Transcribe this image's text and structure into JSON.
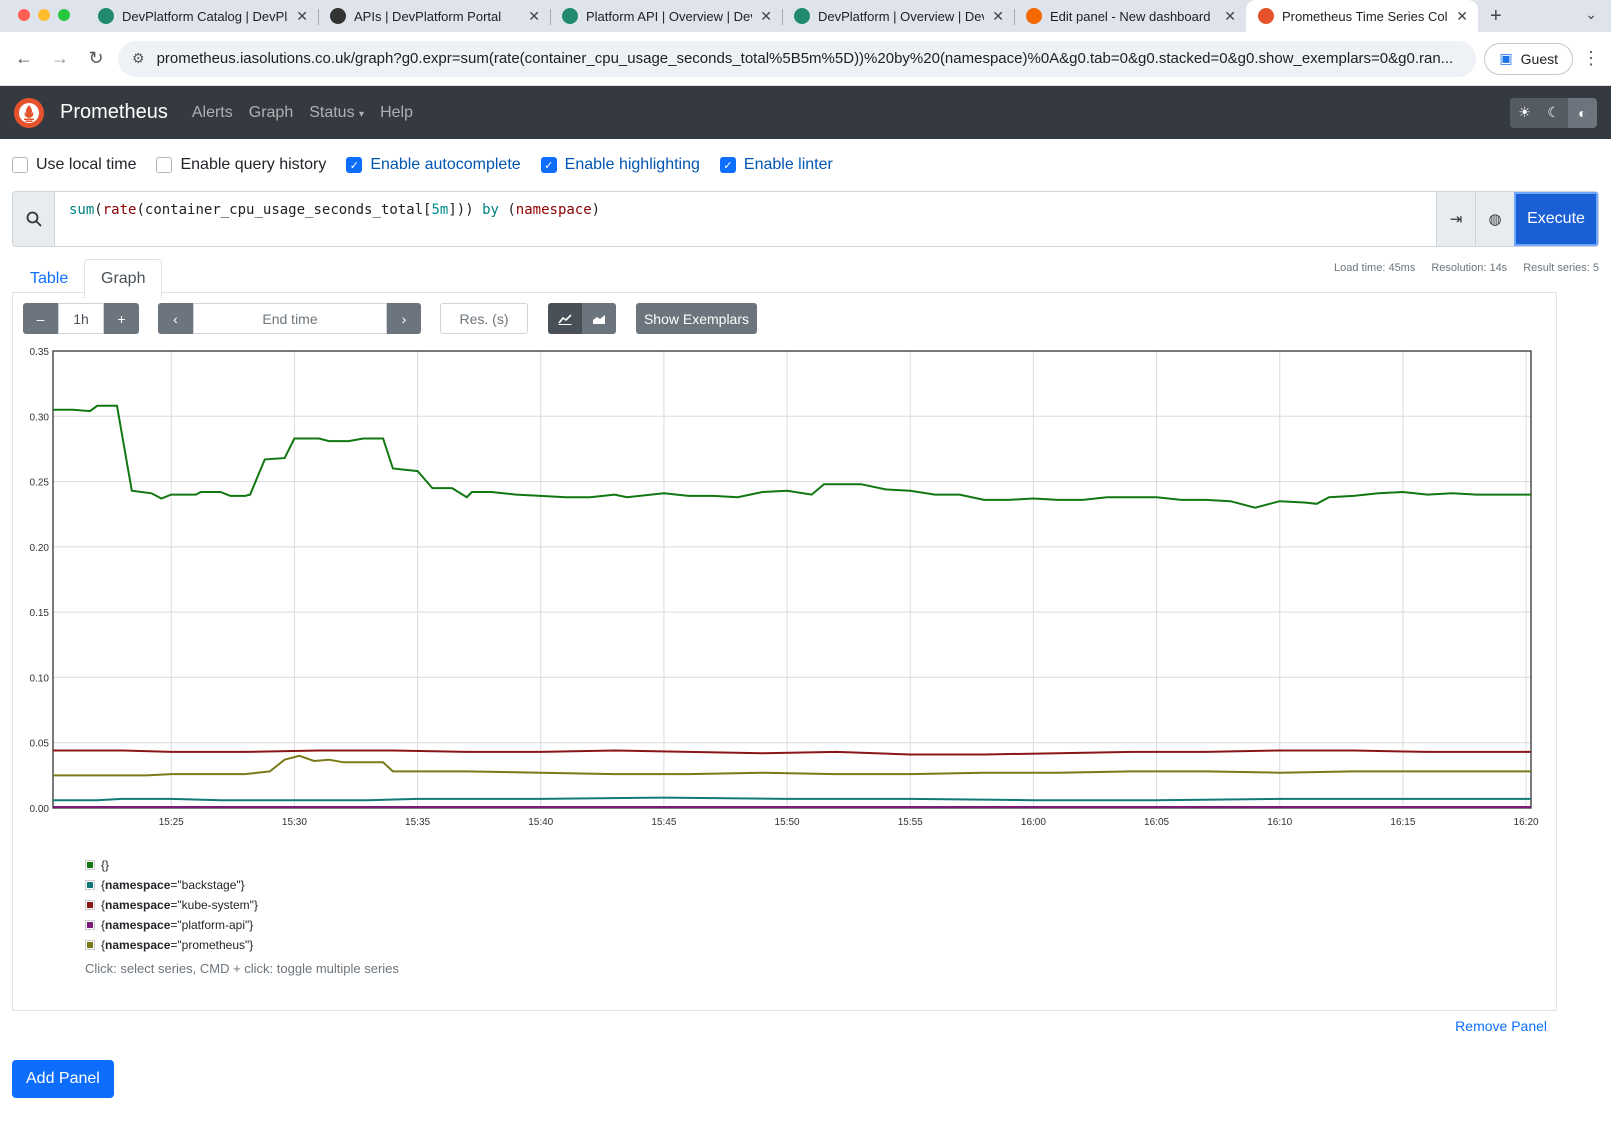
{
  "browser": {
    "tabs": [
      {
        "title": "DevPlatform Catalog | DevPla",
        "color": "#1f8a70"
      },
      {
        "title": "APIs | DevPlatform Portal",
        "color": "#333333"
      },
      {
        "title": "Platform API | Overview | Dev",
        "color": "#1f8a70"
      },
      {
        "title": "DevPlatform | Overview | Dev",
        "color": "#1f8a70"
      },
      {
        "title": "Edit panel - New dashboard",
        "color": "#f46800"
      },
      {
        "title": "Prometheus Time Series Coll",
        "color": "#e6522c"
      }
    ],
    "active_tab": 5,
    "url": "prometheus.iasolutions.co.uk/graph?g0.expr=sum(rate(container_cpu_usage_seconds_total%5B5m%5D))%20by%20(namespace)%0A&g0.tab=0&g0.stacked=0&g0.show_exemplars=0&g0.ran...",
    "profile_label": "Guest"
  },
  "nav": {
    "brand": "Prometheus",
    "links": [
      "Alerts",
      "Graph",
      "Status",
      "Help"
    ]
  },
  "options": [
    {
      "label": "Use local time",
      "checked": false
    },
    {
      "label": "Enable query history",
      "checked": false
    },
    {
      "label": "Enable autocomplete",
      "checked": true
    },
    {
      "label": "Enable highlighting",
      "checked": true
    },
    {
      "label": "Enable linter",
      "checked": true
    }
  ],
  "query": {
    "tokens": [
      {
        "t": "sum",
        "c": "t-fn"
      },
      {
        "t": "(",
        "c": ""
      },
      {
        "t": "rate",
        "c": "t-fn2"
      },
      {
        "t": "(",
        "c": ""
      },
      {
        "t": "container_cpu_usage_seconds_total",
        "c": ""
      },
      {
        "t": "[",
        "c": ""
      },
      {
        "t": "5m",
        "c": "t-num"
      },
      {
        "t": "]",
        "c": ""
      },
      {
        "t": "))",
        "c": ""
      },
      {
        "t": " by ",
        "c": "t-kw"
      },
      {
        "t": "(",
        "c": ""
      },
      {
        "t": "namespace",
        "c": "t-lbl"
      },
      {
        "t": ")",
        "c": ""
      }
    ],
    "execute_label": "Execute"
  },
  "tabs": {
    "table": "Table",
    "graph": "Graph"
  },
  "stats": {
    "load_time": "Load time: 45ms",
    "resolution": "Resolution: 14s",
    "result_series": "Result series: 5"
  },
  "controls": {
    "minus": "–",
    "range": "1h",
    "plus": "+",
    "end_time_placeholder": "End time",
    "res_placeholder": "Res. (s)",
    "show_exemplars": "Show Exemplars"
  },
  "chart_data": {
    "type": "line",
    "ylim": [
      0,
      0.35
    ],
    "yticks": [
      "0.00",
      "0.05",
      "0.10",
      "0.15",
      "0.20",
      "0.25",
      "0.30",
      "0.35"
    ],
    "xticks": [
      "15:25",
      "15:30",
      "15:35",
      "15:40",
      "15:45",
      "15:50",
      "15:55",
      "16:00",
      "16:05",
      "16:10",
      "16:15",
      "16:20"
    ],
    "xrange_minutes": [
      -4.8,
      55.2
    ],
    "series": [
      {
        "name": "{}",
        "color": "#117711",
        "points": [
          [
            -4.8,
            0.305
          ],
          [
            -4,
            0.305
          ],
          [
            -3.3,
            0.304
          ],
          [
            -3,
            0.308
          ],
          [
            -2.2,
            0.308
          ],
          [
            -1.6,
            0.243
          ],
          [
            -0.8,
            0.241
          ],
          [
            -0.4,
            0.237
          ],
          [
            0,
            0.24
          ],
          [
            1,
            0.24
          ],
          [
            1.2,
            0.242
          ],
          [
            2,
            0.242
          ],
          [
            2.4,
            0.239
          ],
          [
            3,
            0.239
          ],
          [
            3.2,
            0.24
          ],
          [
            3.8,
            0.267
          ],
          [
            4.6,
            0.268
          ],
          [
            5,
            0.283
          ],
          [
            6,
            0.283
          ],
          [
            6.4,
            0.281
          ],
          [
            7.2,
            0.281
          ],
          [
            7.8,
            0.283
          ],
          [
            8.6,
            0.283
          ],
          [
            9,
            0.26
          ],
          [
            10,
            0.258
          ],
          [
            10.6,
            0.245
          ],
          [
            11.4,
            0.245
          ],
          [
            12,
            0.238
          ],
          [
            12.2,
            0.242
          ],
          [
            13,
            0.242
          ],
          [
            14,
            0.24
          ],
          [
            15,
            0.239
          ],
          [
            16,
            0.238
          ],
          [
            17,
            0.238
          ],
          [
            18,
            0.24
          ],
          [
            18.5,
            0.238
          ],
          [
            20,
            0.241
          ],
          [
            21,
            0.239
          ],
          [
            22,
            0.239
          ],
          [
            23,
            0.238
          ],
          [
            24,
            0.242
          ],
          [
            25,
            0.243
          ],
          [
            26,
            0.24
          ],
          [
            26.5,
            0.248
          ],
          [
            28,
            0.248
          ],
          [
            29,
            0.244
          ],
          [
            30,
            0.243
          ],
          [
            31,
            0.24
          ],
          [
            32,
            0.24
          ],
          [
            33,
            0.236
          ],
          [
            34,
            0.236
          ],
          [
            35,
            0.237
          ],
          [
            36,
            0.236
          ],
          [
            37,
            0.236
          ],
          [
            38,
            0.238
          ],
          [
            39,
            0.238
          ],
          [
            40,
            0.238
          ],
          [
            41,
            0.236
          ],
          [
            42,
            0.236
          ],
          [
            43,
            0.235
          ],
          [
            44,
            0.23
          ],
          [
            45,
            0.235
          ],
          [
            46,
            0.234
          ],
          [
            46.5,
            0.233
          ],
          [
            47,
            0.238
          ],
          [
            48,
            0.239
          ],
          [
            49,
            0.241
          ],
          [
            50,
            0.242
          ],
          [
            51,
            0.24
          ],
          [
            52,
            0.241
          ],
          [
            53,
            0.24
          ],
          [
            54,
            0.24
          ],
          [
            55.2,
            0.24
          ]
        ]
      },
      {
        "name": "{namespace=\"backstage\"}",
        "color": "#117a78",
        "points": [
          [
            -4.8,
            0.006
          ],
          [
            -3,
            0.006
          ],
          [
            -2,
            0.007
          ],
          [
            0,
            0.007
          ],
          [
            2,
            0.006
          ],
          [
            5,
            0.006
          ],
          [
            8,
            0.006
          ],
          [
            10,
            0.007
          ],
          [
            15,
            0.007
          ],
          [
            20,
            0.008
          ],
          [
            25,
            0.007
          ],
          [
            30,
            0.007
          ],
          [
            35,
            0.006
          ],
          [
            40,
            0.006
          ],
          [
            45,
            0.007
          ],
          [
            50,
            0.007
          ],
          [
            55.2,
            0.007
          ]
        ]
      },
      {
        "name": "{namespace=\"kube-system\"}",
        "color": "#8b1515",
        "points": [
          [
            -4.8,
            0.044
          ],
          [
            -2,
            0.044
          ],
          [
            0,
            0.043
          ],
          [
            3,
            0.043
          ],
          [
            6,
            0.044
          ],
          [
            9,
            0.044
          ],
          [
            12,
            0.043
          ],
          [
            15,
            0.043
          ],
          [
            18,
            0.044
          ],
          [
            21,
            0.043
          ],
          [
            24,
            0.042
          ],
          [
            27,
            0.043
          ],
          [
            30,
            0.041
          ],
          [
            33,
            0.041
          ],
          [
            36,
            0.042
          ],
          [
            39,
            0.043
          ],
          [
            42,
            0.043
          ],
          [
            45,
            0.044
          ],
          [
            48,
            0.044
          ],
          [
            51,
            0.043
          ],
          [
            55.2,
            0.043
          ]
        ]
      },
      {
        "name": "{namespace=\"platform-api\"}",
        "color": "#7a1b7a",
        "points": [
          [
            -4.8,
            0.0008
          ],
          [
            55.2,
            0.0008
          ]
        ]
      },
      {
        "name": "{namespace=\"prometheus\"}",
        "color": "#7a7a18",
        "points": [
          [
            -4.8,
            0.025
          ],
          [
            -1,
            0.025
          ],
          [
            0,
            0.026
          ],
          [
            3,
            0.026
          ],
          [
            4,
            0.028
          ],
          [
            4.6,
            0.037
          ],
          [
            5.2,
            0.04
          ],
          [
            5.8,
            0.036
          ],
          [
            6.4,
            0.037
          ],
          [
            7,
            0.035
          ],
          [
            8.6,
            0.035
          ],
          [
            9,
            0.028
          ],
          [
            12,
            0.028
          ],
          [
            15,
            0.027
          ],
          [
            18,
            0.026
          ],
          [
            21,
            0.026
          ],
          [
            24,
            0.027
          ],
          [
            27,
            0.026
          ],
          [
            30,
            0.026
          ],
          [
            33,
            0.027
          ],
          [
            36,
            0.027
          ],
          [
            39,
            0.028
          ],
          [
            42,
            0.028
          ],
          [
            45,
            0.027
          ],
          [
            48,
            0.028
          ],
          [
            51,
            0.028
          ],
          [
            55.2,
            0.028
          ]
        ]
      }
    ]
  },
  "legend_hint": "Click: select series, CMD + click: toggle multiple series",
  "remove_panel": "Remove Panel",
  "add_panel": "Add Panel"
}
